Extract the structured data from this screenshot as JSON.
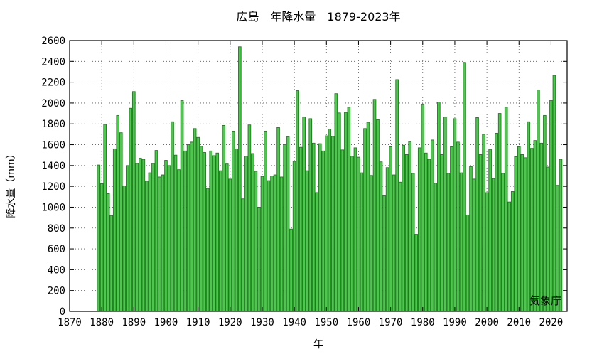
{
  "chart_data": {
    "type": "bar",
    "title": "広島　年降水量　1879-2023年",
    "xlabel": "年",
    "ylabel": "降水量（mm）",
    "credit": "気象庁",
    "xlim": [
      1870,
      2025
    ],
    "ylim": [
      0,
      2600
    ],
    "x_ticks": [
      "1870",
      "1880",
      "1890",
      "1900",
      "1910",
      "1920",
      "1930",
      "1940",
      "1950",
      "1960",
      "1970",
      "1980",
      "1990",
      "2000",
      "2010",
      "2020"
    ],
    "y_ticks": [
      "0",
      "200",
      "400",
      "600",
      "800",
      "1000",
      "1200",
      "1400",
      "1600",
      "1800",
      "2000",
      "2200",
      "2400",
      "2600"
    ],
    "grid": true,
    "bar_color": "#4cc84c",
    "bar_edge_color": "#1f7a1f",
    "x_start": 1879,
    "values": [
      1405,
      1225,
      1795,
      1130,
      920,
      1560,
      1880,
      1715,
      1205,
      1400,
      1950,
      2110,
      1420,
      1470,
      1460,
      1250,
      1330,
      1420,
      1545,
      1290,
      1310,
      1450,
      1400,
      1820,
      1500,
      1360,
      2025,
      1540,
      1600,
      1625,
      1755,
      1670,
      1585,
      1525,
      1180,
      1540,
      1495,
      1520,
      1350,
      1785,
      1415,
      1270,
      1730,
      1560,
      2540,
      1080,
      1490,
      1790,
      1515,
      1345,
      1000,
      1295,
      1730,
      1255,
      1300,
      1310,
      1765,
      1290,
      1600,
      1675,
      790,
      1440,
      2120,
      1575,
      1865,
      1350,
      1850,
      1615,
      1140,
      1610,
      1540,
      1685,
      1750,
      1680,
      2090,
      1905,
      1550,
      1910,
      1960,
      1490,
      1570,
      1480,
      1330,
      1755,
      1815,
      1305,
      2035,
      1840,
      1435,
      1110,
      1380,
      1580,
      1310,
      2225,
      1240,
      1595,
      1505,
      1630,
      1325,
      740,
      1570,
      1985,
      1520,
      1460,
      1645,
      1230,
      2010,
      1505,
      1865,
      1325,
      1580,
      1850,
      1625,
      1330,
      2390,
      925,
      1390,
      1270,
      1860,
      1505,
      1700,
      1140,
      1555,
      1275,
      1710,
      1900,
      1325,
      1960,
      1050,
      1150,
      1485,
      1580,
      1505,
      1475,
      1820,
      1565,
      1640,
      2125,
      1615,
      1880,
      1385,
      2025,
      2265,
      1210,
      1460
    ]
  }
}
